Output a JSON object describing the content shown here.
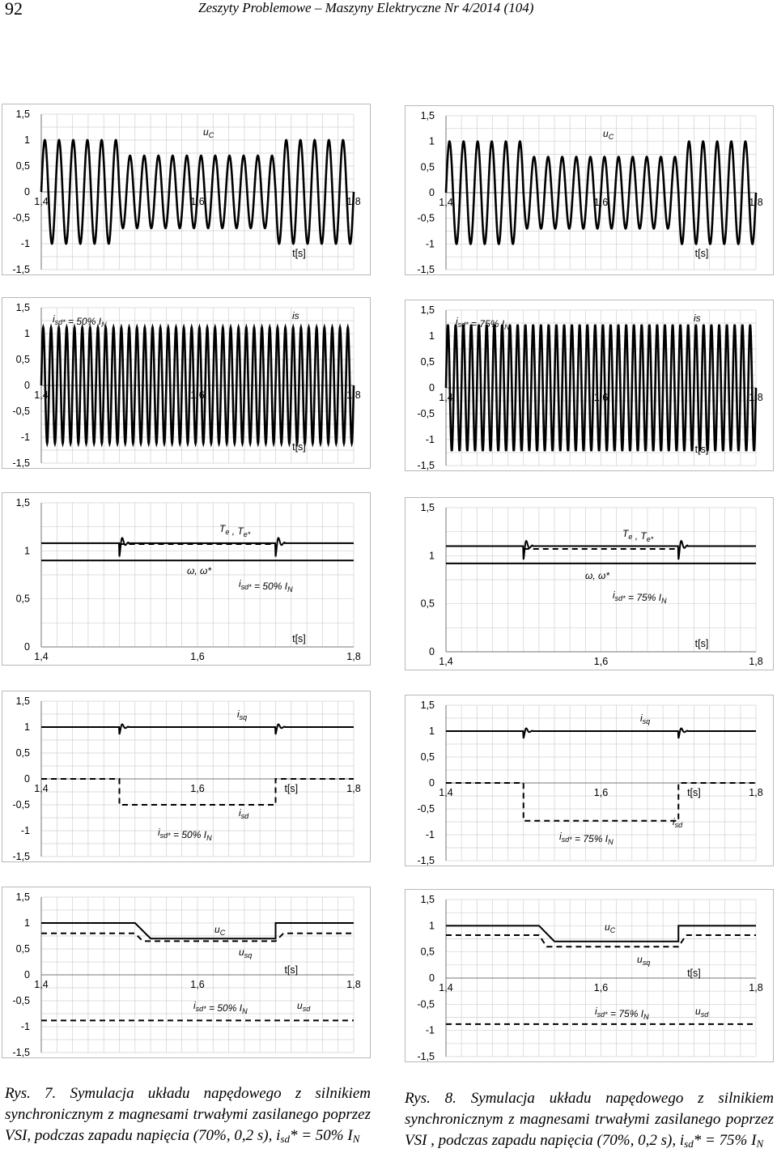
{
  "header": {
    "page_number": "92",
    "journal": "Zeszyty Problemowe – Maszyny Elektryczne Nr 4/2014 (104)"
  },
  "captions": {
    "left": {
      "label": "Rys. 7.",
      "text": "Symulacja układu napędowego z silnikiem synchronicznym z magnesami trwałymi zasilanego poprzez VSI, podczas zapadu napięcia (70%, 0,2 s), i",
      "sub1": "sd",
      "mid": "* = 50% I",
      "sub2": "N"
    },
    "right": {
      "label": "Rys. 8.",
      "text": "Symulacja układu napędowego z silnikiem synchronicznym z magnesami trwałymi zasilanego poprzez VSI , podczas zapadu napięcia (70%, 0,2 s), i",
      "sub1": "sd",
      "mid": "* = 75% I",
      "sub2": "N"
    }
  },
  "chart_data": [
    {
      "id": "fig7-uc",
      "type": "line",
      "column": "left",
      "xlim": [
        1.4,
        1.8
      ],
      "ylim": [
        -1.5,
        1.5
      ],
      "xticks": [
        "1,4",
        "1,6",
        "1,8"
      ],
      "yticks": [
        "1,5",
        "1",
        "0,5",
        "0",
        "-0,5",
        "-1",
        "-1,5"
      ],
      "xlabel": "t[s]",
      "annotations": [
        "u_C"
      ],
      "series": [
        {
          "style": "solid",
          "kind": "sine",
          "freq_hz": 55,
          "amplitude": 1.0,
          "sag_start": 1.5,
          "sag_end": 1.7,
          "sag_amplitude": 0.7
        }
      ]
    },
    {
      "id": "fig8-uc",
      "type": "line",
      "column": "right",
      "xlim": [
        1.4,
        1.8
      ],
      "ylim": [
        -1.5,
        1.5
      ],
      "xticks": [
        "1,4",
        "1,6",
        "1,8"
      ],
      "yticks": [
        "1,5",
        "1",
        "0,5",
        "0",
        "-0,5",
        "-1",
        "-1,5"
      ],
      "xlabel": "t[s]",
      "annotations": [
        "u_C"
      ],
      "series": [
        {
          "style": "solid",
          "kind": "sine",
          "freq_hz": 55,
          "amplitude": 1.0,
          "sag_start": 1.5,
          "sag_end": 1.7,
          "sag_amplitude": 0.7
        }
      ]
    },
    {
      "id": "fig7-is",
      "type": "line",
      "column": "left",
      "xlim": [
        1.4,
        1.8
      ],
      "ylim": [
        -1.5,
        1.5
      ],
      "xticks": [
        "1,4",
        "1,6",
        "1,8"
      ],
      "yticks": [
        "1,5",
        "1",
        "0,5",
        "0",
        "-0,5",
        "-1",
        "-1,5"
      ],
      "xlabel": "t[s]",
      "annotations": [
        "i_sd* = 50% I_N",
        "is"
      ],
      "series": [
        {
          "style": "solid",
          "kind": "sine",
          "freq_hz": 100,
          "amplitude": 1.12,
          "sag_start": 1.5,
          "sag_end": 1.7,
          "sag_amplitude": 1.12
        }
      ]
    },
    {
      "id": "fig8-is",
      "type": "line",
      "column": "right",
      "xlim": [
        1.4,
        1.8
      ],
      "ylim": [
        -1.5,
        1.5
      ],
      "xticks": [
        "1,4",
        "1,6",
        "1,8"
      ],
      "yticks": [
        "1,5",
        "1",
        "0,5",
        "0",
        "-0,5",
        "-1",
        "-1,5"
      ],
      "xlabel": "t[s]",
      "annotations": [
        "i_sd* = 75% I_N",
        "is"
      ],
      "series": [
        {
          "style": "solid",
          "kind": "sine",
          "freq_hz": 100,
          "amplitude": 1.22,
          "sag_start": 1.5,
          "sag_end": 1.7,
          "sag_amplitude": 1.22
        }
      ]
    },
    {
      "id": "fig7-torque",
      "type": "line",
      "column": "left",
      "xlim": [
        1.4,
        1.8
      ],
      "ylim": [
        0,
        1.5
      ],
      "xticks": [
        "1,4",
        "1,6",
        "1,8"
      ],
      "yticks": [
        "1,5",
        "1",
        "0,5",
        "0"
      ],
      "xlabel": "t[s]",
      "annotations": [
        "T_e , T_e*",
        "ω, ω*",
        "i_sd* = 50% I_N"
      ],
      "series": [
        {
          "style": "solid",
          "kind": "step",
          "levels": [
            [
              1.4,
              1.08
            ],
            [
              1.8,
              1.08
            ]
          ],
          "spikes": [
            1.5,
            1.7
          ]
        },
        {
          "style": "dashed",
          "kind": "step",
          "levels": [
            [
              1.5,
              1.07
            ],
            [
              1.7,
              1.07
            ]
          ]
        },
        {
          "style": "solid",
          "kind": "step",
          "levels": [
            [
              1.4,
              0.9
            ],
            [
              1.8,
              0.9
            ]
          ]
        }
      ]
    },
    {
      "id": "fig8-torque",
      "type": "line",
      "column": "right",
      "xlim": [
        1.4,
        1.8
      ],
      "ylim": [
        0,
        1.5
      ],
      "xticks": [
        "1,4",
        "1,6",
        "1,8"
      ],
      "yticks": [
        "1,5",
        "1",
        "0,5",
        "0"
      ],
      "xlabel": "t[s]",
      "annotations": [
        "T_e , T_e*",
        "ω, ω*",
        "i_sd* = 75% I_N"
      ],
      "series": [
        {
          "style": "solid",
          "kind": "step",
          "levels": [
            [
              1.4,
              1.1
            ],
            [
              1.8,
              1.1
            ]
          ],
          "spikes": [
            1.5,
            1.7
          ]
        },
        {
          "style": "dashed",
          "kind": "step",
          "levels": [
            [
              1.5,
              1.07
            ],
            [
              1.7,
              1.07
            ]
          ]
        },
        {
          "style": "solid",
          "kind": "step",
          "levels": [
            [
              1.4,
              0.92
            ],
            [
              1.8,
              0.92
            ]
          ]
        }
      ]
    },
    {
      "id": "fig7-isdq",
      "type": "line",
      "column": "left",
      "xlim": [
        1.4,
        1.8
      ],
      "ylim": [
        -1.5,
        1.5
      ],
      "xticks": [
        "1,4",
        "1,6",
        "1,8"
      ],
      "yticks": [
        "1,5",
        "1",
        "0,5",
        "0",
        "-0,5",
        "-1",
        "-1,5"
      ],
      "xlabel": "t[s]",
      "annotations": [
        "i_sq",
        "i_sd",
        "i_sd* = 50% I_N"
      ],
      "series": [
        {
          "style": "solid",
          "kind": "step",
          "levels": [
            [
              1.4,
              1.0
            ],
            [
              1.8,
              1.0
            ]
          ],
          "spikes": [
            1.5,
            1.7
          ]
        },
        {
          "style": "dashed",
          "kind": "steps",
          "points": [
            [
              1.4,
              0.0
            ],
            [
              1.5,
              0.0
            ],
            [
              1.5,
              -0.5
            ],
            [
              1.7,
              -0.5
            ],
            [
              1.7,
              0.0
            ],
            [
              1.8,
              0.0
            ]
          ]
        }
      ]
    },
    {
      "id": "fig8-isdq",
      "type": "line",
      "column": "right",
      "xlim": [
        1.4,
        1.8
      ],
      "ylim": [
        -1.5,
        1.5
      ],
      "xticks": [
        "1,4",
        "1,6",
        "1,8"
      ],
      "yticks": [
        "1,5",
        "1",
        "0,5",
        "0",
        "-0,5",
        "-1",
        "-1,5"
      ],
      "xlabel": "t[s]",
      "annotations": [
        "i_sq",
        "i_sd",
        "i_sd* = 75% I_N"
      ],
      "series": [
        {
          "style": "solid",
          "kind": "step",
          "levels": [
            [
              1.4,
              1.0
            ],
            [
              1.8,
              1.0
            ]
          ],
          "spikes": [
            1.5,
            1.7
          ]
        },
        {
          "style": "dashed",
          "kind": "steps",
          "points": [
            [
              1.4,
              0.0
            ],
            [
              1.5,
              0.0
            ],
            [
              1.5,
              -0.73
            ],
            [
              1.7,
              -0.73
            ],
            [
              1.7,
              0.0
            ],
            [
              1.8,
              0.0
            ]
          ]
        }
      ]
    },
    {
      "id": "fig7-udq",
      "type": "line",
      "column": "left",
      "xlim": [
        1.4,
        1.8
      ],
      "ylim": [
        -1.5,
        1.5
      ],
      "xticks": [
        "1,4",
        "1,6",
        "1,8"
      ],
      "yticks": [
        "1,5",
        "1",
        "0,5",
        "0",
        "-0,5",
        "-1",
        "-1,5"
      ],
      "xlabel": "t[s]",
      "annotations": [
        "u_C",
        "u_sq",
        "i_sd* = 50% I_N",
        "u_sd"
      ],
      "series": [
        {
          "style": "solid",
          "kind": "steps",
          "points": [
            [
              1.4,
              1.0
            ],
            [
              1.52,
              1.0
            ],
            [
              1.54,
              0.7
            ],
            [
              1.7,
              0.7
            ],
            [
              1.7,
              1.0
            ],
            [
              1.8,
              1.0
            ]
          ]
        },
        {
          "style": "dashed",
          "kind": "steps",
          "points": [
            [
              1.4,
              0.8
            ],
            [
              1.52,
              0.8
            ],
            [
              1.53,
              0.65
            ],
            [
              1.7,
              0.65
            ],
            [
              1.71,
              0.8
            ],
            [
              1.8,
              0.8
            ]
          ]
        },
        {
          "style": "dashed",
          "kind": "steps",
          "points": [
            [
              1.4,
              -0.88
            ],
            [
              1.8,
              -0.88
            ]
          ]
        }
      ]
    },
    {
      "id": "fig8-udq",
      "type": "line",
      "column": "right",
      "xlim": [
        1.4,
        1.8
      ],
      "ylim": [
        -1.5,
        1.5
      ],
      "xticks": [
        "1,4",
        "1,6",
        "1,8"
      ],
      "yticks": [
        "1,5",
        "1",
        "0,5",
        "0",
        "-0,5",
        "-1",
        "-1,5"
      ],
      "xlabel": "t[s]",
      "annotations": [
        "u_C",
        "u_sq",
        "i_sd* = 75% I_N",
        "u_sd"
      ],
      "series": [
        {
          "style": "solid",
          "kind": "steps",
          "points": [
            [
              1.4,
              1.0
            ],
            [
              1.52,
              1.0
            ],
            [
              1.54,
              0.7
            ],
            [
              1.7,
              0.7
            ],
            [
              1.7,
              1.0
            ],
            [
              1.8,
              1.0
            ]
          ]
        },
        {
          "style": "dashed",
          "kind": "steps",
          "points": [
            [
              1.4,
              0.82
            ],
            [
              1.52,
              0.82
            ],
            [
              1.53,
              0.6
            ],
            [
              1.7,
              0.6
            ],
            [
              1.71,
              0.82
            ],
            [
              1.8,
              0.82
            ]
          ]
        },
        {
          "style": "dashed",
          "kind": "steps",
          "points": [
            [
              1.4,
              -0.88
            ],
            [
              1.8,
              -0.88
            ]
          ]
        }
      ]
    }
  ]
}
